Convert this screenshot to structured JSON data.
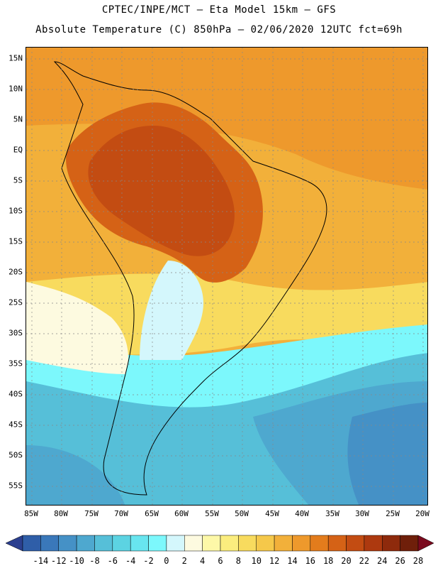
{
  "title_line1": "CPTEC/INPE/MCT –  Eta Model 15km – GFS",
  "title_line2": "Absolute Temperature (C) 850hPa – 02/06/2020 12UTC fct=69h",
  "lat_labels": [
    "15N",
    "10N",
    "5N",
    "EQ",
    "5S",
    "10S",
    "15S",
    "20S",
    "25S",
    "30S",
    "35S",
    "40S",
    "45S",
    "50S",
    "55S"
  ],
  "lon_labels": [
    "85W",
    "80W",
    "75W",
    "70W",
    "65W",
    "60W",
    "55W",
    "50W",
    "45W",
    "40W",
    "35W",
    "30W",
    "25W",
    "20W"
  ],
  "colorbar": {
    "ticks": [
      "-14",
      "-12",
      "-10",
      "-8",
      "-6",
      "-4",
      "-2",
      "0",
      "2",
      "4",
      "6",
      "8",
      "10",
      "12",
      "14",
      "16",
      "18",
      "20",
      "22",
      "24",
      "26",
      "28"
    ],
    "colors": [
      "#2b3f8f",
      "#2f5ea8",
      "#3a78ba",
      "#4591c6",
      "#4ea8cf",
      "#56bfd8",
      "#5cd3e2",
      "#68e5ef",
      "#7cf8fc",
      "#d4f7fc",
      "#fdfae0",
      "#fdf8a8",
      "#fbed7e",
      "#f8db5e",
      "#f5c84a",
      "#f2b03a",
      "#ee992c",
      "#e37c1c",
      "#d56216",
      "#c34c12",
      "#ad390f",
      "#8e2a0c",
      "#6f1f0a",
      "#7a0a1e"
    ]
  },
  "map_colors": {
    "ocean_warm": "#f2b03a",
    "ocean_mid": "#f5c84a",
    "hot_core": "#c34c12",
    "hot": "#d56216",
    "cold_south": "#56bfd8",
    "cool": "#7cf8fc",
    "deep_cold": "#4591c6"
  }
}
